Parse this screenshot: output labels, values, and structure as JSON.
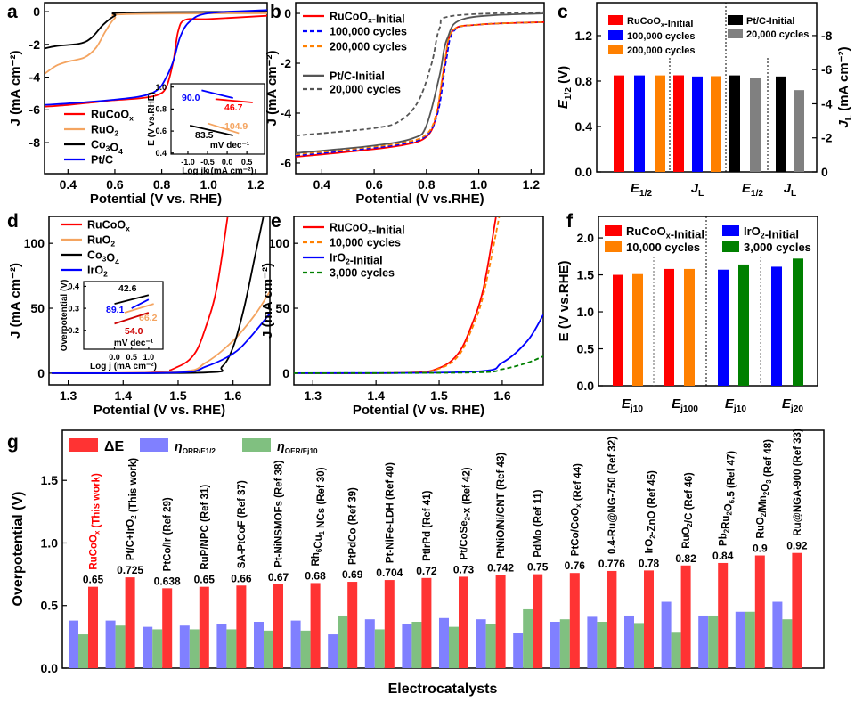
{
  "panel_letters": [
    "a",
    "b",
    "c",
    "d",
    "e",
    "f",
    "g"
  ],
  "chart_data": [
    {
      "panel": "a",
      "type": "line",
      "xlabel": "Potential (V vs. RHE)",
      "ylabel": "J (mA cm⁻²)",
      "xlim": [
        0.3,
        1.25
      ],
      "ylim": [
        -9.9,
        0.55
      ],
      "xticks": [
        "0.4",
        "0.6",
        "0.8",
        "1.0",
        "1.2"
      ],
      "yticks": [
        "0",
        "-2",
        "-4",
        "-6",
        "-8"
      ],
      "legend": "bottom-left",
      "series": [
        {
          "name": "RuCoOx",
          "color": "#ff0000",
          "style": "solid",
          "x": [
            0.3,
            0.4,
            0.5,
            0.6,
            0.7,
            0.78,
            0.82,
            0.85,
            0.87,
            0.9,
            1.0,
            1.25
          ],
          "y": [
            -5.8,
            -5.7,
            -5.55,
            -5.4,
            -5.3,
            -5.1,
            -4.6,
            -3.0,
            -1.2,
            -0.5,
            -0.45,
            -0.25
          ]
        },
        {
          "name": "RuO2",
          "color": "#f4a460",
          "style": "solid",
          "x": [
            0.3,
            0.35,
            0.4,
            0.47,
            0.52,
            0.56,
            0.6,
            0.65,
            1.25
          ],
          "y": [
            -3.8,
            -3.3,
            -3.05,
            -2.8,
            -2.2,
            -1.2,
            -0.4,
            -0.15,
            -0.1
          ]
        },
        {
          "name": "Co3O4",
          "color": "#000000",
          "style": "solid",
          "x": [
            0.3,
            0.35,
            0.45,
            0.5,
            0.55,
            0.6,
            0.65,
            1.25
          ],
          "y": [
            -2.25,
            -2.1,
            -1.95,
            -1.6,
            -0.8,
            -0.25,
            -0.05,
            0
          ]
        },
        {
          "name": "Pt/C",
          "color": "#0000ff",
          "style": "solid",
          "x": [
            0.3,
            0.5,
            0.7,
            0.78,
            0.82,
            0.85,
            0.88,
            0.92,
            1.0,
            1.25
          ],
          "y": [
            -5.7,
            -5.5,
            -5.2,
            -4.8,
            -4.0,
            -3.0,
            -1.5,
            -0.6,
            -0.1,
            0.1
          ]
        }
      ],
      "inset": {
        "xlabel": "Log jk (mA cm⁻²)",
        "ylabel": "E (V vs.RHE)",
        "unit_label": "mV dec⁻¹",
        "xlim": [
          -1.43,
          0.95
        ],
        "ylim": [
          0.39,
          1.03
        ],
        "xticks": [
          "-1.0",
          "-0.5",
          "0.0",
          "0.5"
        ],
        "yticks": [
          "0.4",
          "0.6",
          "0.8",
          "1.0"
        ],
        "lines": [
          {
            "color": "#0000ff",
            "x": [
              -0.65,
              0.15
            ],
            "y": [
              0.97,
              0.9
            ],
            "slope_label": "90.0"
          },
          {
            "color": "#ff0000",
            "x": [
              -0.3,
              0.65
            ],
            "y": [
              0.89,
              0.86
            ],
            "slope_label": "46.7"
          },
          {
            "color": "#f4a460",
            "x": [
              -0.5,
              0.3
            ],
            "y": [
              0.67,
              0.58
            ],
            "slope_label": "104.9"
          },
          {
            "color": "#000000",
            "x": [
              -0.95,
              0.15
            ],
            "y": [
              0.65,
              0.56
            ],
            "slope_label": "83.5"
          }
        ]
      }
    },
    {
      "panel": "b",
      "type": "line",
      "xlabel": "Potential (V vs.RHE)",
      "ylabel": "J (mA cm⁻²)",
      "xlim": [
        0.3,
        1.25
      ],
      "ylim": [
        -6.43,
        0.43
      ],
      "xticks": [
        "0.4",
        "0.6",
        "0.8",
        "1.0",
        "1.2"
      ],
      "yticks": [
        "0",
        "-2",
        "-4",
        "-6"
      ],
      "legend": "top-left",
      "series": [
        {
          "name": "RuCoOx-Initial",
          "color": "#ff0000",
          "style": "solid",
          "x": [
            0.3,
            0.5,
            0.7,
            0.8,
            0.84,
            0.87,
            0.9,
            1.0,
            1.25
          ],
          "y": [
            -5.75,
            -5.55,
            -5.3,
            -4.95,
            -4.0,
            -2.0,
            -0.7,
            -0.45,
            -0.35
          ]
        },
        {
          "name": "100,000 cycles",
          "color": "#0000ff",
          "style": "dashed",
          "x": [
            0.3,
            0.5,
            0.7,
            0.8,
            0.845,
            0.875,
            0.905,
            1.0,
            1.25
          ],
          "y": [
            -5.7,
            -5.5,
            -5.25,
            -4.9,
            -3.9,
            -1.9,
            -0.7,
            -0.45,
            -0.35
          ]
        },
        {
          "name": "200,000 cycles",
          "color": "#ff8000",
          "style": "dashed",
          "x": [
            0.3,
            0.5,
            0.7,
            0.8,
            0.84,
            0.87,
            0.9,
            1.0,
            1.25
          ],
          "y": [
            -5.65,
            -5.45,
            -5.2,
            -4.85,
            -3.9,
            -1.9,
            -0.7,
            -0.45,
            -0.35
          ]
        },
        {
          "name": "Pt/C-Initial",
          "color": "#555555",
          "style": "solid",
          "x": [
            0.3,
            0.6,
            0.75,
            0.8,
            0.85,
            0.88,
            0.95,
            1.25
          ],
          "y": [
            -5.6,
            -5.3,
            -5.0,
            -4.5,
            -2.5,
            -1.0,
            -0.2,
            0
          ]
        },
        {
          "name": "20,000 cycles",
          "color": "#555555",
          "style": "dashed",
          "x": [
            0.3,
            0.6,
            0.7,
            0.77,
            0.82,
            0.85,
            0.9,
            1.25
          ],
          "y": [
            -4.9,
            -4.6,
            -4.3,
            -3.5,
            -2.0,
            -0.6,
            -0.1,
            0.05
          ]
        }
      ]
    },
    {
      "panel": "c",
      "type": "bar",
      "ylabel": "E1/2 (V)",
      "y2label": "JL (mA cm⁻²)",
      "ylim": [
        0,
        1.49
      ],
      "y2lim": [
        0,
        -9.93
      ],
      "yticks": [
        "0.0",
        "0.4",
        "0.8",
        "1.2"
      ],
      "y2ticks": [
        "0",
        "-2",
        "-4",
        "-6",
        "-8"
      ],
      "categories": [
        "E1/2",
        "JL",
        "E1/2",
        "JL"
      ],
      "legend": [
        {
          "name": "RuCoOx-Initial",
          "color": "#ff0000"
        },
        {
          "name": "100,000 cycles",
          "color": "#0000ff"
        },
        {
          "name": "200,000 cycles",
          "color": "#ff8000"
        },
        {
          "name": "Pt/C-Initial",
          "color": "#000000"
        },
        {
          "name": "20,000 cycles",
          "color": "#808080"
        }
      ],
      "bars": [
        {
          "category": 0,
          "series": 0,
          "value": 0.85,
          "axis": "left"
        },
        {
          "category": 0,
          "series": 1,
          "value": 0.85,
          "axis": "left"
        },
        {
          "category": 0,
          "series": 2,
          "value": 0.85,
          "axis": "left"
        },
        {
          "category": 1,
          "series": 0,
          "value": -5.67,
          "axis": "right"
        },
        {
          "category": 1,
          "series": 1,
          "value": -5.6,
          "axis": "right"
        },
        {
          "category": 1,
          "series": 2,
          "value": -5.62,
          "axis": "right"
        },
        {
          "category": 2,
          "series": 3,
          "value": 0.85,
          "axis": "left"
        },
        {
          "category": 2,
          "series": 4,
          "value": 0.83,
          "axis": "left"
        },
        {
          "category": 3,
          "series": 3,
          "value": -5.6,
          "axis": "right"
        },
        {
          "category": 3,
          "series": 4,
          "value": -4.8,
          "axis": "right"
        }
      ]
    },
    {
      "panel": "d",
      "type": "line",
      "xlabel": "Potential (V vs. RHE)",
      "ylabel": "J (mA cm⁻²)",
      "xlim": [
        1.265,
        1.667
      ],
      "ylim": [
        -9,
        120.7
      ],
      "xticks": [
        "1.3",
        "1.4",
        "1.5",
        "1.6"
      ],
      "yticks": [
        "0",
        "50",
        "100"
      ],
      "legend": "top-left",
      "series": [
        {
          "name": "RuCoOx",
          "color": "#ff0000",
          "style": "solid",
          "x": [
            1.27,
            1.45,
            1.5,
            1.53,
            1.55,
            1.57,
            1.59
          ],
          "y": [
            0,
            0.5,
            5,
            15,
            35,
            65,
            120
          ]
        },
        {
          "name": "RuO2",
          "color": "#f4a460",
          "style": "solid",
          "x": [
            1.27,
            1.5,
            1.55,
            1.6,
            1.64,
            1.667
          ],
          "y": [
            0,
            1,
            8,
            25,
            45,
            63
          ]
        },
        {
          "name": "Co3O4",
          "color": "#000000",
          "style": "solid",
          "x": [
            1.27,
            1.55,
            1.58,
            1.6,
            1.62,
            1.64,
            1.655
          ],
          "y": [
            0,
            0.5,
            5,
            20,
            50,
            90,
            120
          ]
        },
        {
          "name": "IrO2",
          "color": "#0000ff",
          "style": "solid",
          "x": [
            1.27,
            1.5,
            1.55,
            1.6,
            1.63,
            1.667
          ],
          "y": [
            0,
            0.5,
            5,
            15,
            27,
            46
          ]
        }
      ],
      "inset": {
        "xlabel": "Log j (mA cm⁻²)",
        "ylabel": "Overpotential (V)",
        "unit_label": "mV dec⁻¹",
        "xlim": [
          -0.9,
          1.42
        ],
        "ylim": [
          0.114,
          0.422
        ],
        "xticks": [
          "0.0",
          "0.5",
          "1.0"
        ],
        "yticks": [
          "0.2",
          "0.3",
          "0.4"
        ],
        "lines": [
          {
            "color": "#000000",
            "x": [
              0,
              1
            ],
            "y": [
              0.32,
              0.36
            ],
            "slope_label": "42.6"
          },
          {
            "color": "#0000ff",
            "x": [
              0.5,
              1
            ],
            "y": [
              0.3,
              0.34
            ],
            "slope_label": "89.1"
          },
          {
            "color": "#f4a460",
            "x": [
              0.3,
              1.15
            ],
            "y": [
              0.28,
              0.32
            ],
            "slope_label": "66.2"
          },
          {
            "color": "#cc0000",
            "x": [
              0,
              1
            ],
            "y": [
              0.23,
              0.28
            ],
            "slope_label": "54.0"
          }
        ]
      }
    },
    {
      "panel": "e",
      "type": "line",
      "xlabel": "Potential (V vs. RHE)",
      "ylabel": "J (mA cm⁻²)",
      "xlim": [
        1.27,
        1.665
      ],
      "ylim": [
        -9,
        120.7
      ],
      "xticks": [
        "1.3",
        "1.4",
        "1.5",
        "1.6"
      ],
      "yticks": [
        "0",
        "50",
        "100"
      ],
      "legend": "top-left",
      "series": [
        {
          "name": "RuCoOx-Initial",
          "color": "#ff0000",
          "style": "solid",
          "x": [
            1.27,
            1.45,
            1.5,
            1.53,
            1.55,
            1.57,
            1.59
          ],
          "y": [
            0,
            0.3,
            4,
            15,
            35,
            65,
            120
          ]
        },
        {
          "name": "10,000 cycles",
          "color": "#ff8000",
          "style": "dashed",
          "x": [
            1.27,
            1.45,
            1.5,
            1.53,
            1.55,
            1.57,
            1.595
          ],
          "y": [
            0,
            0.3,
            3.5,
            13,
            32,
            60,
            120
          ]
        },
        {
          "name": "IrO2-Initial",
          "color": "#0000ff",
          "style": "solid",
          "x": [
            1.27,
            1.55,
            1.6,
            1.64,
            1.665
          ],
          "y": [
            0,
            1,
            8,
            25,
            45
          ]
        },
        {
          "name": "3,000 cycles",
          "color": "#008000",
          "style": "dashed",
          "x": [
            1.27,
            1.55,
            1.6,
            1.64,
            1.665
          ],
          "y": [
            0,
            0.5,
            3,
            8,
            13
          ]
        }
      ]
    },
    {
      "panel": "f",
      "type": "bar",
      "ylabel": "E (V vs.RHE)",
      "ylim": [
        0,
        2.29
      ],
      "yticks": [
        "0.0",
        "0.5",
        "1.0",
        "1.5",
        "2.0"
      ],
      "categories": [
        "Ej10",
        "Ej100",
        "Ej10",
        "Ej20"
      ],
      "legend": [
        {
          "name": "RuCoOx-Initial",
          "color": "#ff0000"
        },
        {
          "name": "10,000 cycles",
          "color": "#ff8000"
        },
        {
          "name": "IrO2-Initial",
          "color": "#0000ff"
        },
        {
          "name": "3,000 cycles",
          "color": "#008000"
        }
      ],
      "bars": [
        {
          "category": 0,
          "series": 0,
          "value": 1.5
        },
        {
          "category": 0,
          "series": 1,
          "value": 1.51
        },
        {
          "category": 1,
          "series": 0,
          "value": 1.58
        },
        {
          "category": 1,
          "series": 1,
          "value": 1.58
        },
        {
          "category": 2,
          "series": 2,
          "value": 1.57
        },
        {
          "category": 2,
          "series": 3,
          "value": 1.64
        },
        {
          "category": 3,
          "series": 2,
          "value": 1.61
        },
        {
          "category": 3,
          "series": 3,
          "value": 1.72
        }
      ]
    },
    {
      "panel": "g",
      "type": "bar",
      "xlabel": "Electrocatalysts",
      "ylabel": "Overpotential (V)",
      "ylim": [
        0,
        1.9
      ],
      "yticks": [
        "0.0",
        "0.5",
        "1.0",
        "1.5"
      ],
      "legend_position": "top-left",
      "categories": [
        "RuCoOx (This work)",
        "Pt/C+IrO2 (This work)",
        "PtCo/Ir (Ref 29)",
        "RuP/NPC (Ref 31)",
        "SA-PtCoF (Ref 37)",
        "Pt-NiNSMOFs (Ref 38)",
        "Rh6Cu1 NCs (Ref 30)",
        "PtPdCo (Ref 39)",
        "Pt-NiFe-LDH (Ref 40)",
        "PtIrPd (Ref 41)",
        "Pt/CoSe2-x (Ref 42)",
        "PtNiO/Ni/CNT (Ref 43)",
        "PdMo (Ref 11)",
        "PtCo/CoOx (Ref 44)",
        "0.4-Ru@NG-750 (Ref 32)",
        "IrO2-ZnO (Ref 45)",
        "RuO2/C (Ref 46)",
        "Pb2Ru2O6.5 (Ref 47)",
        "RuO2/Mn2O3 (Ref 48)",
        "Ru@NGA-900 (Ref 33)"
      ],
      "highlight_color": "#ff0000",
      "series": [
        {
          "name": "ηORR/E1/2",
          "color": "#8080ff",
          "values": [
            0.38,
            0.38,
            0.33,
            0.34,
            0.35,
            0.37,
            0.38,
            0.27,
            0.39,
            0.35,
            0.4,
            0.39,
            0.28,
            0.37,
            0.41,
            0.42,
            0.53,
            0.42,
            0.45,
            0.53
          ]
        },
        {
          "name": "ηOER/Ej10",
          "color": "#80c080",
          "values": [
            0.27,
            0.34,
            0.31,
            0.31,
            0.31,
            0.3,
            0.3,
            0.42,
            0.31,
            0.37,
            0.33,
            0.35,
            0.47,
            0.39,
            0.37,
            0.36,
            0.29,
            0.42,
            0.45,
            0.39
          ]
        },
        {
          "name": "ΔE",
          "color": "#ff3333",
          "values": [
            0.65,
            0.725,
            0.638,
            0.65,
            0.66,
            0.67,
            0.68,
            0.69,
            0.704,
            0.72,
            0.73,
            0.742,
            0.75,
            0.76,
            0.776,
            0.78,
            0.82,
            0.84,
            0.9,
            0.92
          ],
          "value_labels": [
            "0.65",
            "0.725",
            "0.638",
            "0.65",
            "0.66",
            "0.67",
            "0.68",
            "0.69",
            "0.704",
            "0.72",
            "0.73",
            "0.742",
            "0.75",
            "0.76",
            "0.776",
            "0.78",
            "0.82",
            "0.84",
            "0.9",
            "0.92"
          ]
        }
      ]
    }
  ]
}
